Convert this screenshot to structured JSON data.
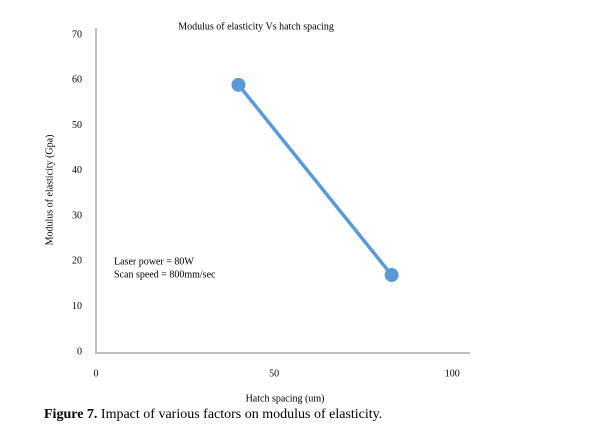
{
  "chart_data": {
    "type": "line",
    "title": "Modulus of elasticity Vs hatch spacing",
    "x_label": "Hatch spacing (um)",
    "y_label": "Modulus of elasticity (Gpa)",
    "annotations": [
      "Laser power = 80W",
      "Scan speed = 800mm/sec"
    ],
    "x": [
      40,
      83
    ],
    "series": [
      {
        "name": "Modulus of elasticity",
        "color": "#5b9bd5",
        "values": [
          59,
          17
        ]
      }
    ],
    "xlim": [
      0,
      105
    ],
    "xticks": [
      0,
      50,
      100
    ],
    "ylim": [
      0,
      70
    ],
    "yticks": [
      0,
      10,
      20,
      30,
      40,
      50,
      60,
      70
    ],
    "grid": false
  },
  "caption": {
    "label": "Figure 7.",
    "text": "Impact of various factors on modulus of elasticity."
  }
}
